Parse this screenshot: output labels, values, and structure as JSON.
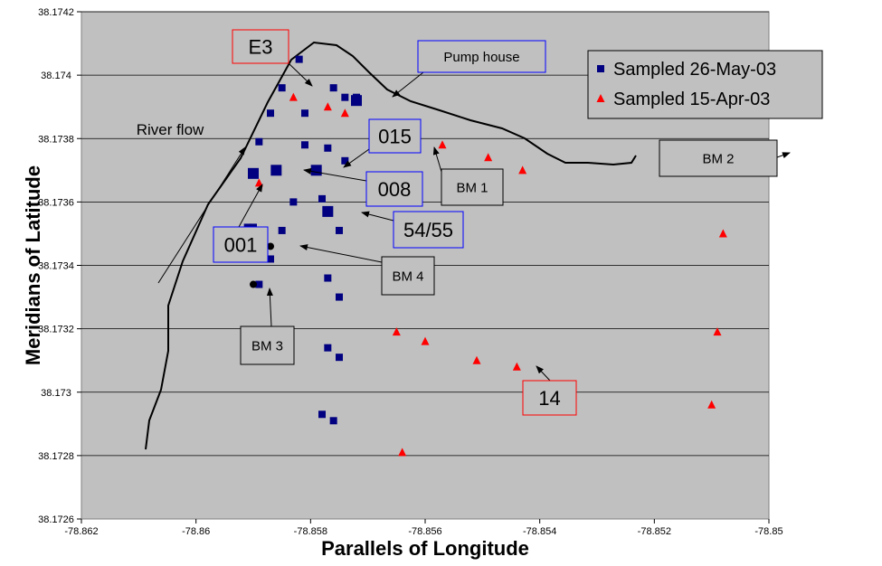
{
  "chart_data": {
    "type": "scatter",
    "xlabel": "Parallels of Longitude",
    "ylabel": "Meridians of Latitude",
    "xlim": [
      -78.862,
      -78.85
    ],
    "ylim": [
      38.1726,
      38.1742
    ],
    "x_ticks": [
      -78.862,
      -78.86,
      -78.858,
      -78.856,
      -78.854,
      -78.852,
      -78.85
    ],
    "x_tick_labels": [
      "-78.862",
      "-78.86",
      "-78.858",
      "-78.856",
      "-78.854",
      "-78.852",
      "-78.85"
    ],
    "y_ticks": [
      38.1726,
      38.1728,
      38.173,
      38.1732,
      38.1734,
      38.1736,
      38.1738,
      38.174,
      38.1742
    ],
    "y_tick_labels": [
      "38.1726",
      "38.1728",
      "38.173",
      "38.1732",
      "38.1734",
      "38.1736",
      "38.1738",
      "38.174",
      "38.1742"
    ],
    "grid": "horizontal",
    "plot_background": "#c0c0c0",
    "legend_position": "top-right",
    "series": [
      {
        "name": "Sampled 26-May-03",
        "marker": "square",
        "color": "#000080",
        "x": [
          -78.8582,
          -78.8585,
          -78.8576,
          -78.8587,
          -78.8581,
          -78.8574,
          -78.8572,
          -78.8589,
          -78.8581,
          -78.8577,
          -78.8574,
          -78.8591,
          -78.8578,
          -78.8583,
          -78.859,
          -78.8585,
          -78.8575,
          -78.8587,
          -78.8577,
          -78.8575,
          -78.8589,
          -78.8577,
          -78.8575,
          -78.8578,
          -78.8576
        ],
        "y": [
          38.17405,
          38.17396,
          38.17396,
          38.17388,
          38.17388,
          38.17393,
          38.17393,
          38.17379,
          38.17378,
          38.17377,
          38.17373,
          38.17352,
          38.17361,
          38.1736,
          38.17352,
          38.17351,
          38.17351,
          38.17342,
          38.17336,
          38.1733,
          38.17334,
          38.17314,
          38.17311,
          38.17293,
          38.17291
        ]
      },
      {
        "name": "Sampled 15-Apr-03",
        "marker": "triangle",
        "color": "#ff0000",
        "x": [
          -78.8583,
          -78.8577,
          -78.8574,
          -78.8565,
          -78.8557,
          -78.8549,
          -78.8543,
          -78.8589,
          -78.8565,
          -78.856,
          -78.8551,
          -78.8544,
          -78.8508,
          -78.8509,
          -78.851,
          -78.8564
        ],
        "y": [
          38.17393,
          38.1739,
          38.17388,
          38.17383,
          38.17378,
          38.17374,
          38.1737,
          38.17366,
          38.17319,
          38.17316,
          38.1731,
          38.17308,
          38.1735,
          38.17319,
          38.17296,
          38.17281
        ]
      }
    ],
    "highlighted_samples": [
      {
        "label": "001",
        "x": -78.859,
        "y": 38.17369
      },
      {
        "label": "008",
        "x": -78.8586,
        "y": 38.1737
      },
      {
        "label": "015",
        "x": -78.8579,
        "y": 38.1737
      },
      {
        "label": "Pump house",
        "x": -78.8572,
        "y": 38.17392
      },
      {
        "label": "54/55",
        "x": -78.8577,
        "y": 38.17357
      }
    ],
    "benchmarks": [
      {
        "label": "BM 1",
        "x": -78.8565,
        "y": 38.17378
      },
      {
        "label": "BM 2",
        "x": -78.8508,
        "y": 38.17375
      },
      {
        "label": "BM 3",
        "x": -78.859,
        "y": 38.17334
      },
      {
        "label": "BM 4",
        "x": -78.8587,
        "y": 38.17346
      }
    ],
    "annotations": [
      {
        "text": "E3",
        "box_color": "#ff0000"
      },
      {
        "text": "Pump house",
        "box_color": "#0000ff"
      },
      {
        "text": "015",
        "box_color": "#0000ff"
      },
      {
        "text": "008",
        "box_color": "#0000ff"
      },
      {
        "text": "001",
        "box_color": "#0000ff"
      },
      {
        "text": "54/55",
        "box_color": "#0000ff"
      },
      {
        "text": "BM 1",
        "box_color": "#000000"
      },
      {
        "text": "BM 2",
        "box_color": "#000000"
      },
      {
        "text": "BM 3",
        "box_color": "#000000"
      },
      {
        "text": "BM 4",
        "box_color": "#000000"
      },
      {
        "text": "14",
        "box_color": "#ff0000"
      },
      {
        "text": "River flow",
        "box_color": ""
      }
    ]
  }
}
